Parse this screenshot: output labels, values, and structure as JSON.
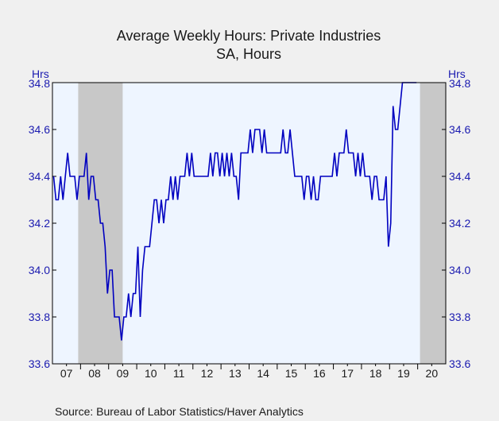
{
  "chart_data": {
    "type": "line",
    "title": "Average Weekly Hours: Private Industries",
    "subtitle": "SA, Hours",
    "y_unit_left": "Hrs",
    "y_unit_right": "Hrs",
    "source": "Source:  Bureau of Labor Statistics/Haver Analytics",
    "ylim": [
      33.6,
      34.8
    ],
    "yticks": [
      "34.8",
      "34.6",
      "34.4",
      "34.2",
      "34.0",
      "33.8",
      "33.6"
    ],
    "xticks": [
      "07",
      "08",
      "09",
      "10",
      "11",
      "12",
      "13",
      "14",
      "15",
      "16",
      "17",
      "18",
      "19",
      "20"
    ],
    "x_start": "2007-01",
    "x_end": "2020-12",
    "grid": false,
    "recessions": [
      {
        "start": "2007-12",
        "end": "2009-06"
      },
      {
        "start": "2020-02",
        "end": "2020-12"
      }
    ],
    "series": [
      {
        "color": "#0000c0",
        "values": [
          34.4,
          34.3,
          34.3,
          34.4,
          34.3,
          34.4,
          34.5,
          34.4,
          34.4,
          34.4,
          34.3,
          34.4,
          34.4,
          34.4,
          34.5,
          34.3,
          34.4,
          34.4,
          34.3,
          34.3,
          34.2,
          34.2,
          34.1,
          33.9,
          34.0,
          34.0,
          33.8,
          33.8,
          33.8,
          33.7,
          33.8,
          33.8,
          33.9,
          33.8,
          33.9,
          33.9,
          34.1,
          33.8,
          34.0,
          34.1,
          34.1,
          34.1,
          34.2,
          34.3,
          34.3,
          34.2,
          34.3,
          34.2,
          34.3,
          34.3,
          34.4,
          34.3,
          34.4,
          34.3,
          34.4,
          34.4,
          34.4,
          34.5,
          34.4,
          34.5,
          34.4,
          34.4,
          34.4,
          34.4,
          34.4,
          34.4,
          34.4,
          34.5,
          34.4,
          34.5,
          34.5,
          34.4,
          34.5,
          34.4,
          34.5,
          34.4,
          34.5,
          34.4,
          34.4,
          34.3,
          34.5,
          34.5,
          34.5,
          34.5,
          34.6,
          34.5,
          34.6,
          34.6,
          34.6,
          34.5,
          34.6,
          34.5,
          34.5,
          34.5,
          34.5,
          34.5,
          34.5,
          34.5,
          34.6,
          34.5,
          34.5,
          34.6,
          34.5,
          34.4,
          34.4,
          34.4,
          34.4,
          34.3,
          34.4,
          34.4,
          34.3,
          34.4,
          34.3,
          34.3,
          34.4,
          34.4,
          34.4,
          34.4,
          34.4,
          34.4,
          34.5,
          34.4,
          34.5,
          34.5,
          34.5,
          34.6,
          34.5,
          34.5,
          34.5,
          34.4,
          34.5,
          34.4,
          34.5,
          34.4,
          34.4,
          34.4,
          34.3,
          34.4,
          34.4,
          34.3,
          34.3,
          34.3,
          34.4,
          34.1,
          34.2,
          34.7,
          34.6,
          34.6,
          34.7,
          34.8,
          34.8,
          34.8,
          34.8,
          34.8,
          34.8,
          34.8
        ]
      }
    ]
  }
}
